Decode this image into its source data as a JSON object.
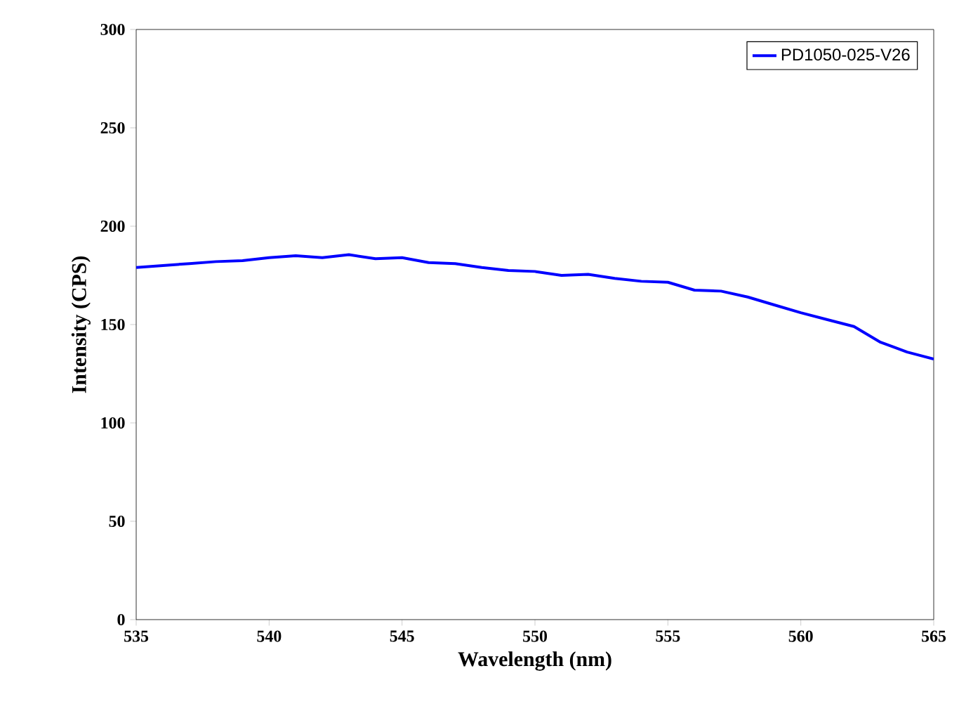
{
  "chart_data": {
    "type": "line",
    "xlabel": "Wavelength (nm)",
    "ylabel": "Intensity (CPS)",
    "x": [
      535,
      536,
      537,
      538,
      539,
      540,
      541,
      542,
      543,
      544,
      545,
      546,
      547,
      548,
      549,
      550,
      551,
      552,
      553,
      554,
      555,
      556,
      557,
      558,
      559,
      560,
      561,
      562,
      563,
      564,
      565
    ],
    "series": [
      {
        "name": "PD1050-025-V26",
        "color": "#0000ff",
        "values": [
          179,
          180,
          181,
          182,
          182.5,
          184,
          185,
          184,
          185.5,
          183.5,
          184,
          181.5,
          181,
          179,
          177.5,
          177,
          175,
          175.5,
          173.5,
          172,
          171.5,
          167.5,
          167,
          164,
          160,
          156,
          152.5,
          149,
          141,
          136,
          132.5
        ]
      }
    ],
    "xlim": [
      535,
      565
    ],
    "xticks": [
      535,
      540,
      545,
      550,
      555,
      560,
      565
    ],
    "ylim": [
      0,
      300
    ],
    "yticks": [
      0,
      50,
      100,
      150,
      200,
      250,
      300
    ],
    "legend": "top right"
  }
}
